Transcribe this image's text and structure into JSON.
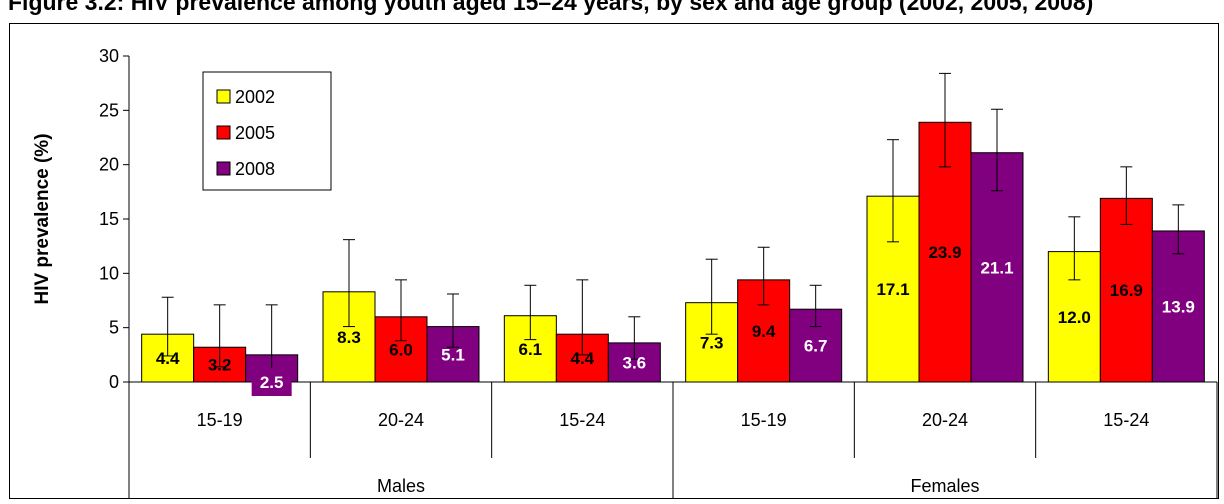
{
  "chart_data": {
    "type": "bar",
    "title": "Figure 3.2: HIV prevalence among youth aged 15–24 years, by sex and age group (2002, 2005, 2008)",
    "ylabel": "HIV prevalence (%)",
    "xlabel": "",
    "ylim": [
      0,
      30
    ],
    "yticks": [
      0,
      5,
      10,
      15,
      20,
      25,
      30
    ],
    "grid": false,
    "legend_position": "top-left",
    "groups": [
      {
        "label": "Males",
        "categories": [
          "15-19",
          "20-24",
          "15-24"
        ]
      },
      {
        "label": "Females",
        "categories": [
          "15-19",
          "20-24",
          "15-24"
        ]
      }
    ],
    "categories": [
      "15-19",
      "20-24",
      "15-24",
      "15-19",
      "20-24",
      "15-24"
    ],
    "series": [
      {
        "name": "2002",
        "color": "#ffff00",
        "label_color": "#000000",
        "values": [
          4.4,
          8.3,
          6.1,
          7.3,
          17.1,
          12.0
        ],
        "labels": [
          "4.4",
          "8.3",
          "6.1",
          "7.3",
          "17.1",
          "12.0"
        ],
        "err_low": [
          2.4,
          5.1,
          3.9,
          4.4,
          12.9,
          9.4
        ],
        "err_high": [
          7.8,
          13.1,
          8.9,
          11.3,
          22.3,
          15.2
        ]
      },
      {
        "name": "2005",
        "color": "#ff0000",
        "label_color": "#000000",
        "values": [
          3.2,
          6.0,
          4.4,
          9.4,
          23.9,
          16.9
        ],
        "labels": [
          "3.2",
          "6.0",
          "4.4",
          "9.4",
          "23.9",
          "16.9"
        ],
        "err_low": [
          1.4,
          3.8,
          2.5,
          7.1,
          19.8,
          14.5
        ],
        "err_high": [
          7.1,
          9.4,
          9.4,
          12.4,
          28.4,
          19.8
        ]
      },
      {
        "name": "2008",
        "color": "#800080",
        "label_color": "#ffffff",
        "values": [
          2.5,
          5.1,
          3.6,
          6.7,
          21.1,
          13.9
        ],
        "labels": [
          "2.5",
          "5.1",
          "3.6",
          "6.7",
          "21.1",
          "13.9"
        ],
        "err_low": [
          0.8,
          3.2,
          2.1,
          5.1,
          17.6,
          11.8
        ],
        "err_high": [
          7.1,
          8.1,
          6.0,
          8.9,
          25.1,
          16.3
        ]
      }
    ]
  }
}
